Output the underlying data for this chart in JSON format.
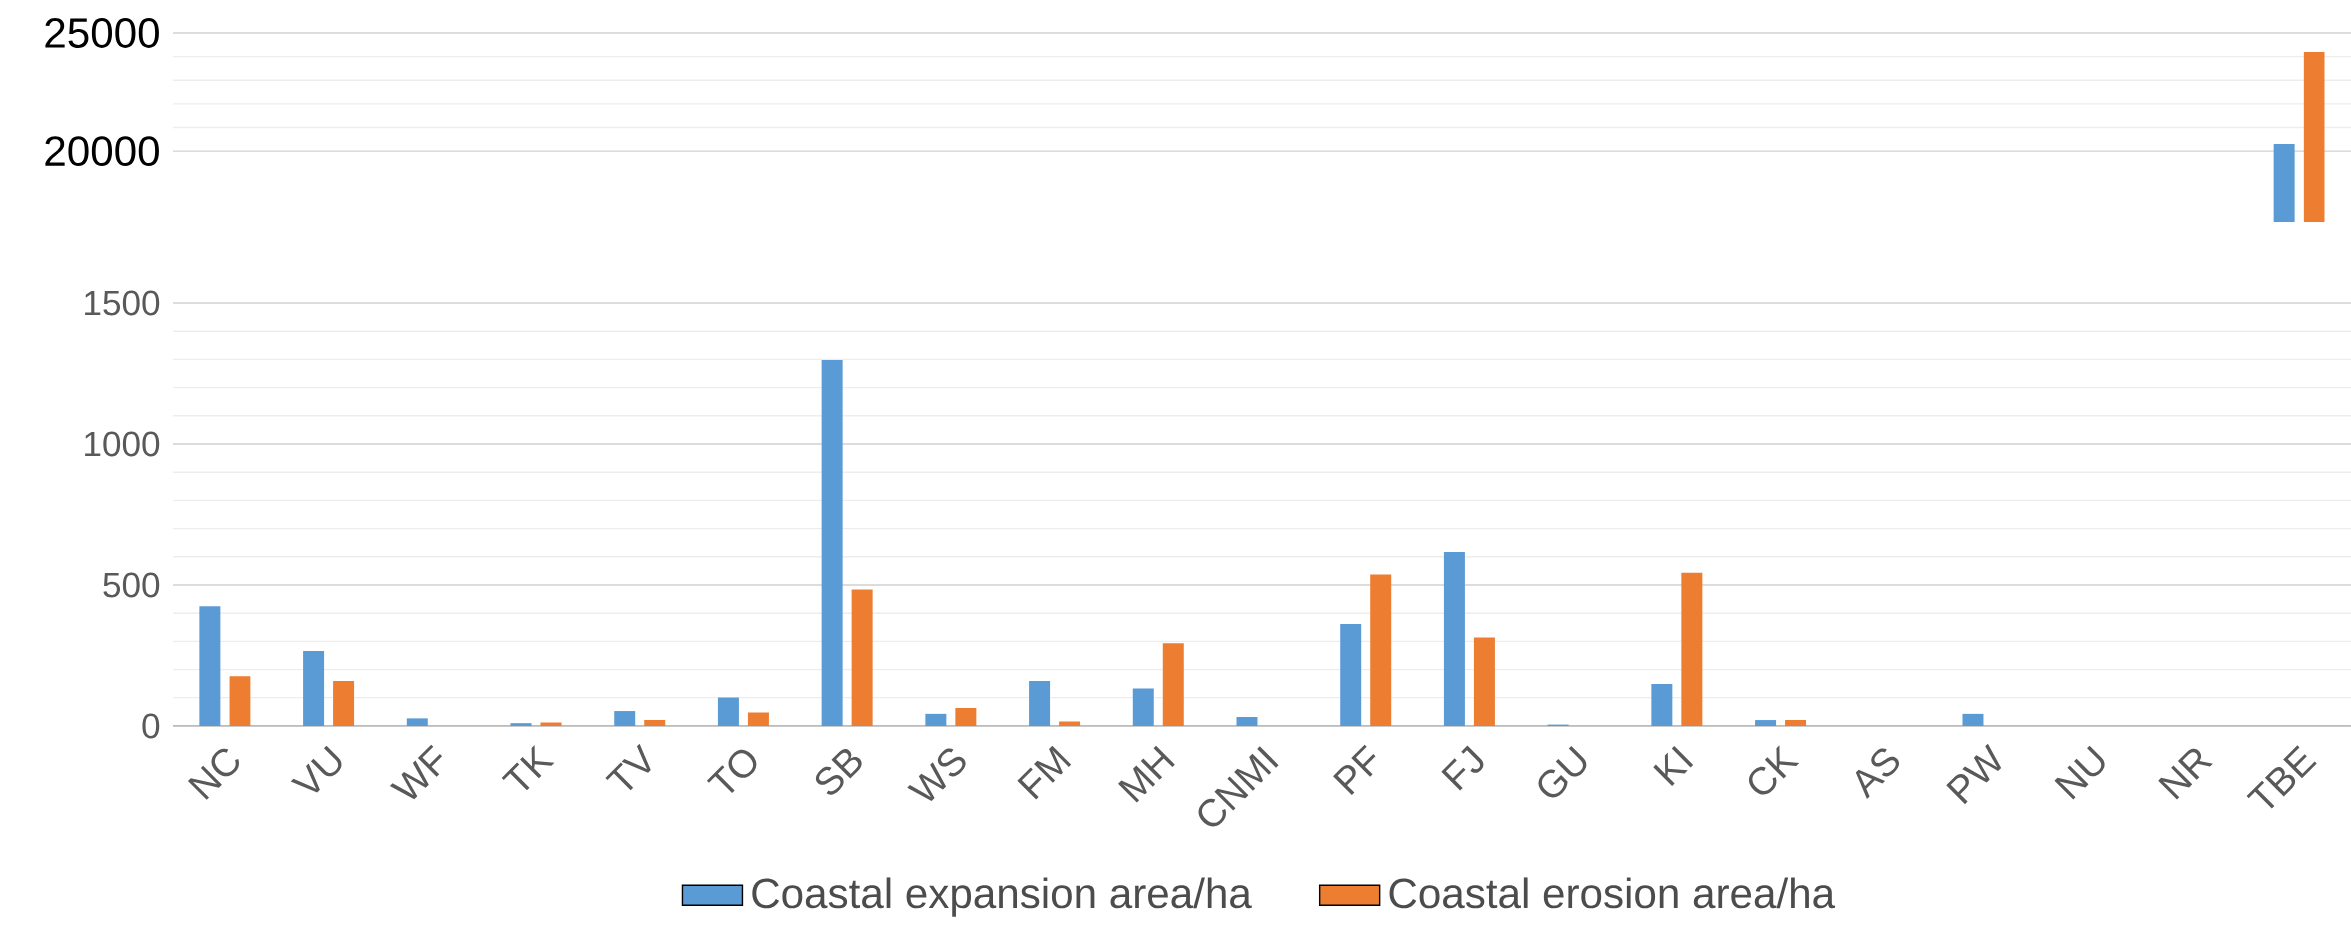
{
  "chart_data": [
    {
      "type": "bar",
      "categories": [
        null,
        null,
        null,
        null,
        null,
        null,
        null,
        null,
        null,
        null,
        null,
        null,
        null,
        null,
        null,
        null,
        null,
        null,
        null,
        null,
        null
      ],
      "series": [
        {
          "color": "#5b9bd5",
          "values": [
            null,
            null,
            null,
            null,
            null,
            null,
            null,
            null,
            null,
            null,
            null,
            null,
            null,
            null,
            null,
            null,
            null,
            null,
            null,
            null,
            20300
          ]
        },
        {
          "color": "#ed7d31",
          "values": [
            null,
            null,
            null,
            null,
            null,
            null,
            null,
            null,
            null,
            null,
            null,
            null,
            null,
            null,
            null,
            null,
            null,
            null,
            null,
            null,
            24200
          ]
        }
      ],
      "ylim": [
        17000,
        25000
      ],
      "yticks": [
        20000,
        25000
      ],
      "grid": "y",
      "tick_labels": "y"
    },
    {
      "type": "bar",
      "categories": [
        "NC",
        "VU",
        "WF",
        "TK",
        "TV",
        "TO",
        "SB",
        "WS",
        "FM",
        "MH",
        "CNMI",
        "PF",
        "FJ",
        "GU",
        "KI",
        "CK",
        "AS",
        "PW",
        "NU",
        "NR",
        "TBE"
      ],
      "series": [
        {
          "name": "Coastal expansion area/ha",
          "color": "#5b9bd5",
          "values": [
            425,
            266,
            27,
            10,
            53,
            101,
            1298,
            43,
            160,
            133,
            32,
            362,
            617,
            5,
            149,
            21,
            0,
            43,
            0,
            0,
            null
          ]
        },
        {
          "name": "Coastal erosion area/ha",
          "color": "#ed7d31",
          "values": [
            176,
            160,
            0,
            12,
            21,
            48,
            484,
            64,
            16,
            293,
            0,
            537,
            314,
            0,
            543,
            21,
            0,
            0,
            0,
            0,
            null
          ]
        }
      ],
      "ylim": [
        0,
        1500
      ],
      "yticks": [
        0,
        500,
        1000,
        1500
      ],
      "grid": "y",
      "legend": "bottom"
    }
  ]
}
